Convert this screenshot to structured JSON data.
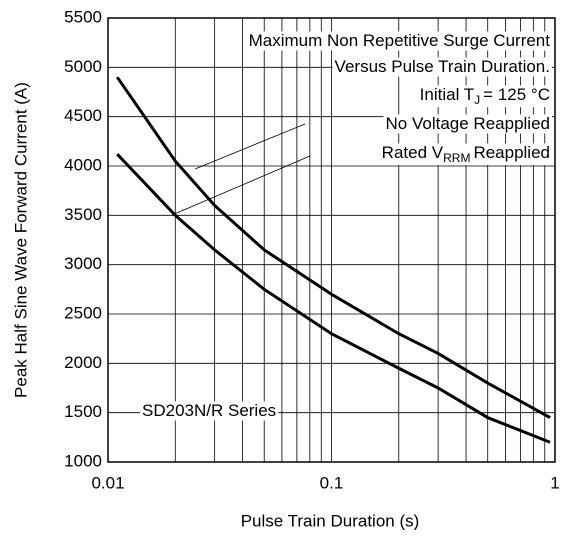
{
  "chart_data": {
    "type": "line",
    "xlabel": "Pulse Train Duration (s)",
    "ylabel": "Peak Half Sine Wave Forward Current (A)",
    "log_x": true,
    "grid": true,
    "xlim": [
      0.01,
      1
    ],
    "xticks": [
      0.01,
      0.1,
      1
    ],
    "ylim": [
      1000,
      5500
    ],
    "yticks": [
      1000,
      1500,
      2000,
      2500,
      3000,
      3500,
      4000,
      4500,
      5000,
      5500
    ],
    "x": [
      0.011,
      0.02,
      0.03,
      0.05,
      0.1,
      0.2,
      0.3,
      0.5,
      0.95
    ],
    "series": [
      {
        "name": "No Voltage Reapplied",
        "color": "#000000",
        "values": [
          4900,
          4050,
          3600,
          3150,
          2700,
          2300,
          2100,
          1800,
          1450
        ]
      },
      {
        "name": "Rated VRRM Reapplied",
        "color": "#000000",
        "values": [
          4120,
          3500,
          3150,
          2750,
          2300,
          1950,
          1750,
          1450,
          1200
        ]
      }
    ],
    "annotations": [
      {
        "text": "Maximum Non Repetitive Surge Current"
      },
      {
        "text": "Versus Pulse Train Duration."
      },
      {
        "text": "Initial T",
        "sub": "J",
        "tail": "= 125 °C"
      },
      {
        "text": "No Voltage Reapplied"
      },
      {
        "text": "Rated V",
        "sub": "RRM",
        "tail": "Reapplied"
      },
      {
        "text": "SD203N/R Series"
      }
    ]
  }
}
